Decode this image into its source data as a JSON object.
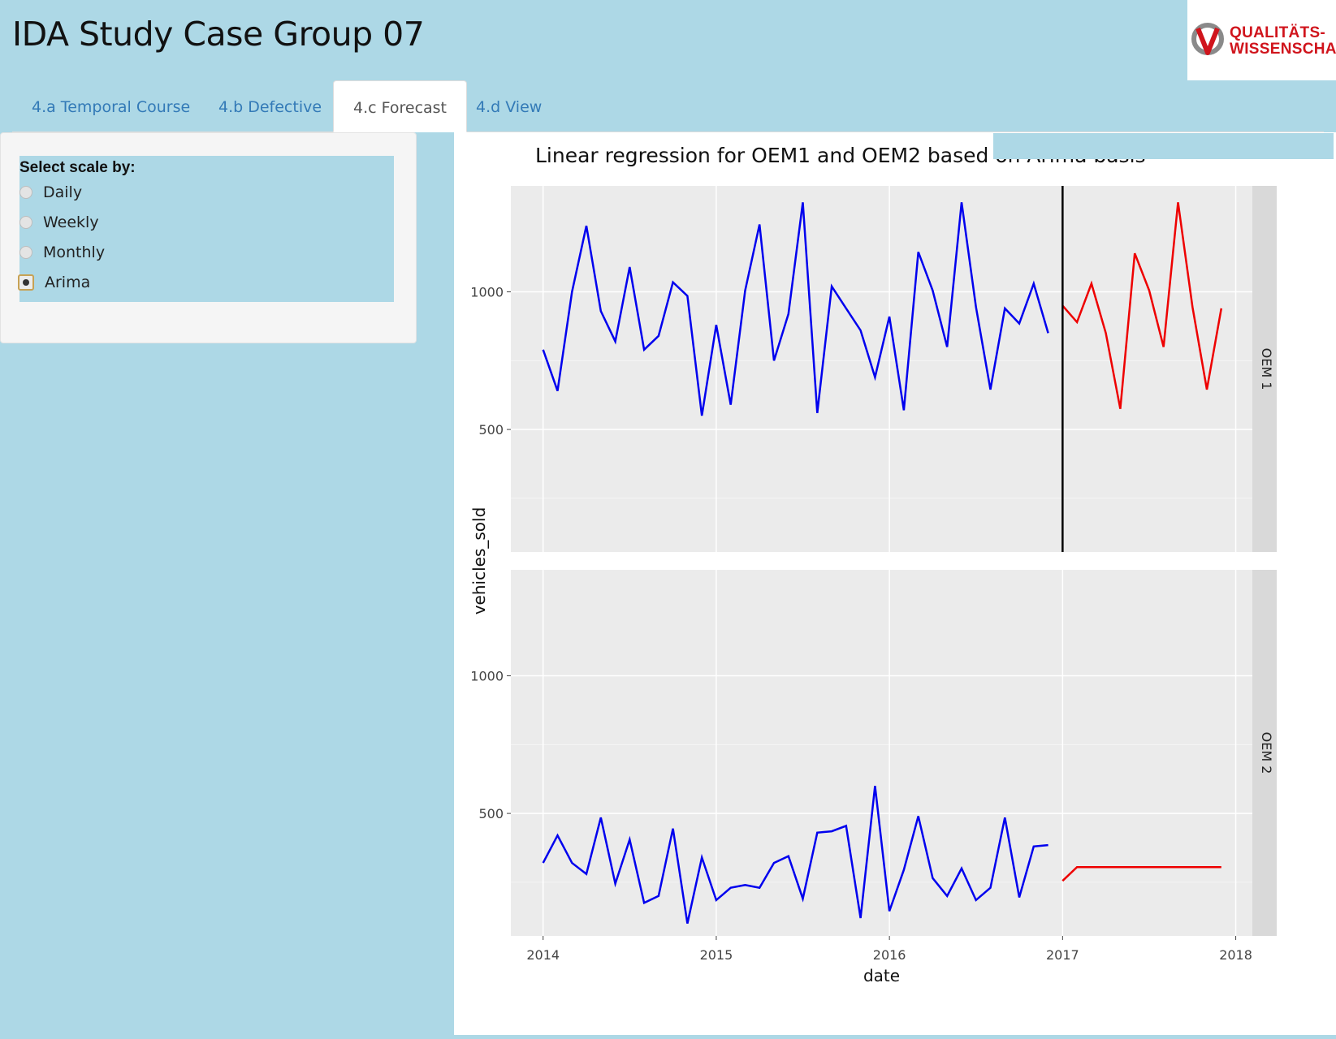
{
  "header": {
    "title": "IDA Study Case Group 07",
    "logo": {
      "line1": "QUALITÄTS-",
      "line2": "WISSENSCHAFT"
    }
  },
  "tabs": [
    {
      "label": "4.a Temporal Course",
      "active": false
    },
    {
      "label": "4.b Defective",
      "active": false
    },
    {
      "label": "4.c Forecast",
      "active": true
    },
    {
      "label": "4.d View",
      "active": false
    }
  ],
  "sidebar": {
    "radio_title": "Select scale by:",
    "options": [
      {
        "label": "Daily",
        "checked": false
      },
      {
        "label": "Weekly",
        "checked": false
      },
      {
        "label": "Monthly",
        "checked": false
      },
      {
        "label": "Arima",
        "checked": true
      }
    ]
  },
  "chart_data": {
    "type": "line",
    "title": "Linear regression for OEM1 and OEM2 based on Arima basis",
    "xlabel": "date",
    "ylabel": "vehicles_sold",
    "x_ticks": [
      "2014",
      "2015",
      "2016",
      "2017",
      "2018"
    ],
    "xlim": [
      "2013-10-25",
      "2018-02-05"
    ],
    "y_ticks": [
      500,
      1000
    ],
    "ylim": [
      55,
      1385
    ],
    "forecast_start": "2017-01",
    "colors": {
      "observed": "#0000ee",
      "forecast": "#ee0000",
      "divider": "#000000"
    },
    "facets": [
      {
        "name": "OEM 1",
        "observed": {
          "x": [
            "2014-01",
            "2014-02",
            "2014-03",
            "2014-04",
            "2014-05",
            "2014-06",
            "2014-07",
            "2014-08",
            "2014-09",
            "2014-10",
            "2014-11",
            "2014-12",
            "2015-01",
            "2015-02",
            "2015-03",
            "2015-04",
            "2015-05",
            "2015-06",
            "2015-07",
            "2015-08",
            "2015-09",
            "2015-10",
            "2015-11",
            "2015-12",
            "2016-01",
            "2016-02",
            "2016-03",
            "2016-04",
            "2016-05",
            "2016-06",
            "2016-07",
            "2016-08",
            "2016-09",
            "2016-10",
            "2016-11",
            "2016-12"
          ],
          "y": [
            790,
            640,
            1000,
            1240,
            930,
            820,
            1090,
            790,
            840,
            1035,
            985,
            550,
            880,
            590,
            1005,
            1245,
            750,
            920,
            1325,
            560,
            1020,
            940,
            860,
            690,
            910,
            570,
            1145,
            1005,
            800,
            1325,
            945,
            645,
            940,
            885,
            1030,
            850
          ]
        },
        "forecast": {
          "x": [
            "2017-01",
            "2017-02",
            "2017-03",
            "2017-04",
            "2017-05",
            "2017-06",
            "2017-07",
            "2017-08",
            "2017-09",
            "2017-10",
            "2017-11",
            "2017-12"
          ],
          "y": [
            950,
            890,
            1030,
            850,
            575,
            1140,
            1005,
            800,
            1325,
            945,
            645,
            940
          ]
        },
        "vline": "2017-01"
      },
      {
        "name": "OEM 2",
        "observed": {
          "x": [
            "2014-01",
            "2014-02",
            "2014-03",
            "2014-04",
            "2014-05",
            "2014-06",
            "2014-07",
            "2014-08",
            "2014-09",
            "2014-10",
            "2014-11",
            "2014-12",
            "2015-01",
            "2015-02",
            "2015-03",
            "2015-04",
            "2015-05",
            "2015-06",
            "2015-07",
            "2015-08",
            "2015-09",
            "2015-10",
            "2015-11",
            "2015-12",
            "2016-01",
            "2016-02",
            "2016-03",
            "2016-04",
            "2016-05",
            "2016-06",
            "2016-07",
            "2016-08",
            "2016-09",
            "2016-10",
            "2016-11",
            "2016-12"
          ],
          "y": [
            320,
            420,
            320,
            280,
            485,
            245,
            405,
            175,
            200,
            445,
            100,
            340,
            185,
            230,
            240,
            230,
            320,
            345,
            190,
            430,
            435,
            455,
            120,
            600,
            145,
            295,
            490,
            265,
            200,
            300,
            185,
            230,
            485,
            195,
            380,
            385
          ]
        },
        "forecast": {
          "x": [
            "2017-01",
            "2017-02",
            "2017-03",
            "2017-04",
            "2017-05",
            "2017-06",
            "2017-07",
            "2017-08",
            "2017-09",
            "2017-10",
            "2017-11",
            "2017-12"
          ],
          "y": [
            255,
            305,
            305,
            305,
            305,
            305,
            305,
            305,
            305,
            305,
            305,
            305
          ]
        }
      }
    ]
  }
}
